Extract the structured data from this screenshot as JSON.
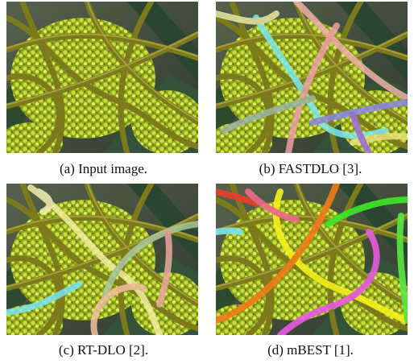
{
  "figure": {
    "panels": [
      {
        "caption": "(a) Input image."
      },
      {
        "caption": "(b) FASTDLO [3]."
      },
      {
        "caption": "(c) RT-DLO [2]."
      },
      {
        "caption": "(d) mBEST [1]."
      }
    ]
  }
}
